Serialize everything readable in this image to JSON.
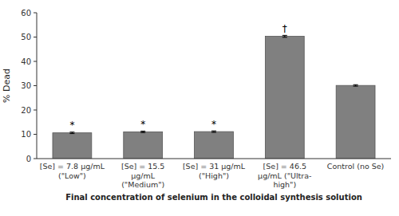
{
  "chart_data": {
    "type": "bar",
    "categories": [
      "[Se] = 7.8 μg/mL (\"Low\")",
      "[Se] = 15.5 μg/mL\n(\"Medium\")",
      "[Se] = 31 μg/mL (\"High\")",
      "[Se] = 46.5 μg/mL (\"Ultra-\nhigh\")",
      "Control (no Se)"
    ],
    "values": [
      10.6,
      11.0,
      11.1,
      50.3,
      30.1
    ],
    "errors": [
      0.3,
      0.3,
      0.3,
      0.4,
      0.3
    ],
    "color": "#808080",
    "ylim": [
      0,
      60
    ],
    "yticks": [
      0,
      10,
      20,
      30,
      40,
      50,
      60
    ],
    "ylabel": "% Dead",
    "xlabel": "Final concentration of selenium in the colloidal synthesis solution",
    "annotations": [
      {
        "text": "*",
        "bar": 0,
        "offset": 1.5
      },
      {
        "text": "*",
        "bar": 1,
        "offset": 1.5
      },
      {
        "text": "*",
        "bar": 2,
        "offset": 1.5
      },
      {
        "text": "†",
        "bar": 3,
        "offset": 1.5
      }
    ],
    "grid": false
  }
}
